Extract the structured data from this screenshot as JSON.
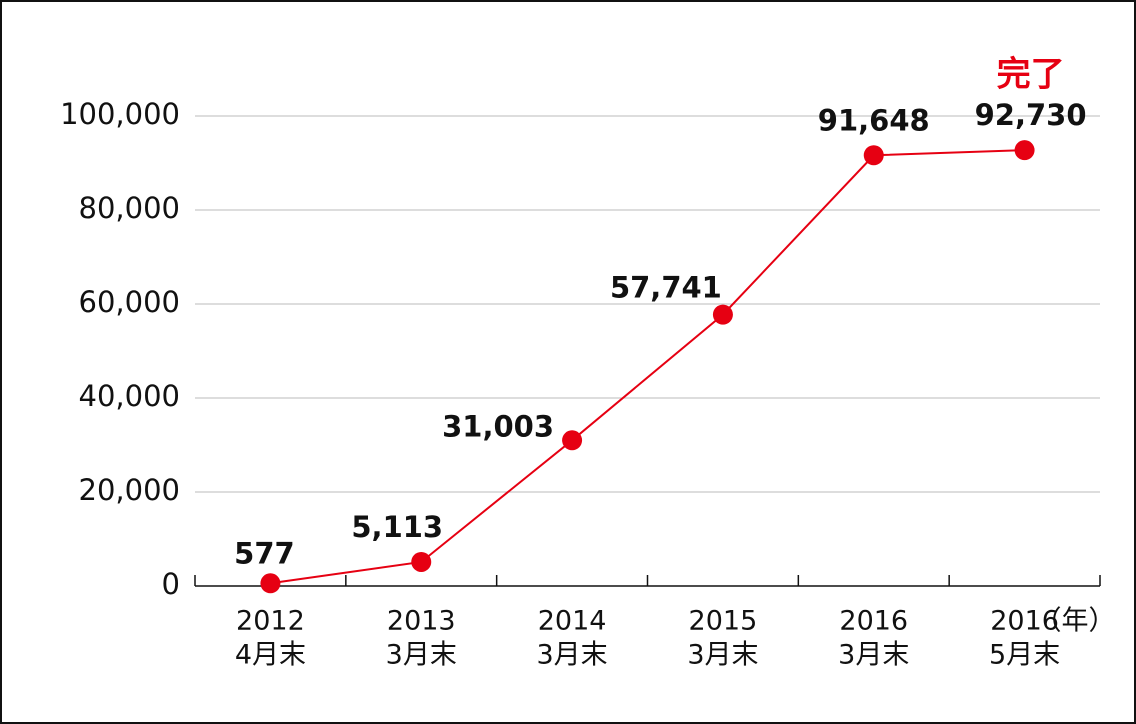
{
  "chart_data": {
    "type": "line",
    "categories": [
      [
        "2012",
        "4月末"
      ],
      [
        "2013",
        "3月末"
      ],
      [
        "2014",
        "3月末"
      ],
      [
        "2015",
        "3月末"
      ],
      [
        "2016",
        "3月末"
      ],
      [
        "2016",
        "5月末"
      ]
    ],
    "values": [
      577,
      5113,
      31003,
      57741,
      91648,
      92730
    ],
    "value_labels": [
      "577",
      "5,113",
      "31,003",
      "57,741",
      "91,648",
      "92,730"
    ],
    "color": "#e60012",
    "ylim": [
      0,
      100000
    ],
    "yticks": [
      0,
      {
        "value": 20000,
        "label": "20,000"
      },
      {
        "value": 40000,
        "label": "40,000"
      },
      {
        "value": 60000,
        "label": "60,000"
      },
      {
        "value": 80000,
        "label": "80,000"
      },
      {
        "value": 100000,
        "label": "100,000"
      }
    ],
    "grid": true,
    "x_unit_label": "（年）",
    "annotation": "完了"
  }
}
